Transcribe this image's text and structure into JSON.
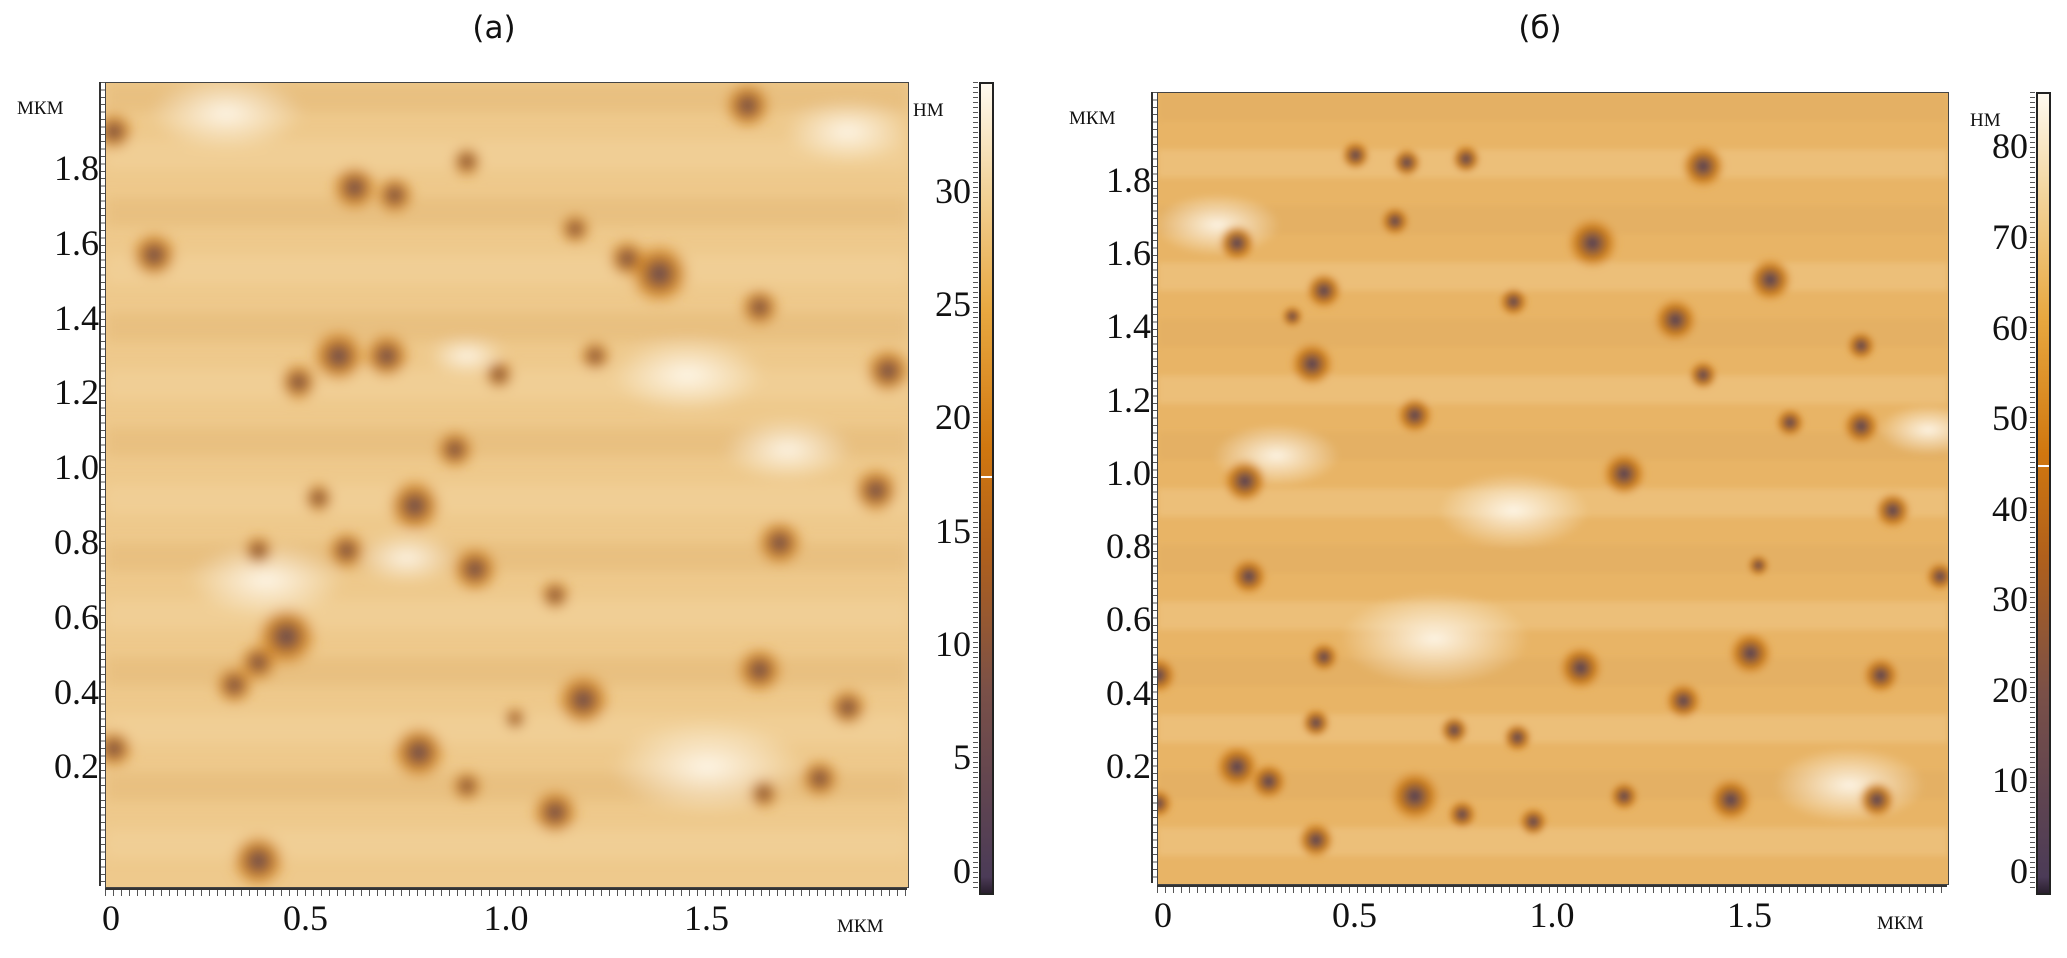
{
  "chart_data": [
    {
      "type": "heatmap",
      "title": "(a)",
      "xlabel": "мкм",
      "ylabel": "мкм",
      "colorbar_label": "нм",
      "xticks": [
        "0",
        "0.5",
        "1.0",
        "1.5"
      ],
      "xtick_values": [
        0,
        0.5,
        1.0,
        1.5
      ],
      "yticks": [
        "0.2",
        "0.4",
        "0.6",
        "0.8",
        "1.0",
        "1.2",
        "1.4",
        "1.6",
        "1.8"
      ],
      "ytick_values": [
        0.2,
        0.4,
        0.6,
        0.8,
        1.0,
        1.2,
        1.4,
        1.6,
        1.8
      ],
      "xlim": [
        0,
        2.0
      ],
      "ylim": [
        -0.12,
        2.03
      ],
      "colorbar_ticks": [
        "0",
        "5",
        "10",
        "15",
        "20",
        "25",
        "30"
      ],
      "colorbar_tick_values": [
        0,
        5,
        10,
        15,
        20,
        25,
        30
      ],
      "colorbar_range": [
        -0.9,
        34.8
      ],
      "colorbar_marker": 17.5,
      "colors": {
        "low": "#4b3b57",
        "mid": "#d0770f",
        "high": "#fffaf0",
        "surface": "#eec98c"
      }
    },
    {
      "type": "heatmap",
      "title": "(б)",
      "xlabel": "мкм",
      "ylabel": "мкм",
      "colorbar_label": "нм",
      "xticks": [
        "0",
        "0.5",
        "1.0",
        "1.5"
      ],
      "xtick_values": [
        0,
        0.5,
        1.0,
        1.5
      ],
      "yticks": [
        "0.2",
        "0.4",
        "0.6",
        "0.8",
        "1.0",
        "1.2",
        "1.4",
        "1.6",
        "1.8"
      ],
      "ytick_values": [
        0.2,
        0.4,
        0.6,
        0.8,
        1.0,
        1.2,
        1.4,
        1.6,
        1.8
      ],
      "xlim": [
        0,
        2.0
      ],
      "ylim": [
        -0.12,
        2.04
      ],
      "colorbar_ticks": [
        "0",
        "10",
        "20",
        "30",
        "40",
        "50",
        "60",
        "70",
        "80"
      ],
      "colorbar_tick_values": [
        0,
        10,
        20,
        30,
        40,
        50,
        60,
        70,
        80
      ],
      "colorbar_range": [
        -2.2,
        86
      ],
      "colorbar_marker": 45,
      "colors": {
        "low": "#4b3b57",
        "mid": "#d0770f",
        "high": "#fffaf0",
        "surface": "#e8b466"
      }
    }
  ]
}
